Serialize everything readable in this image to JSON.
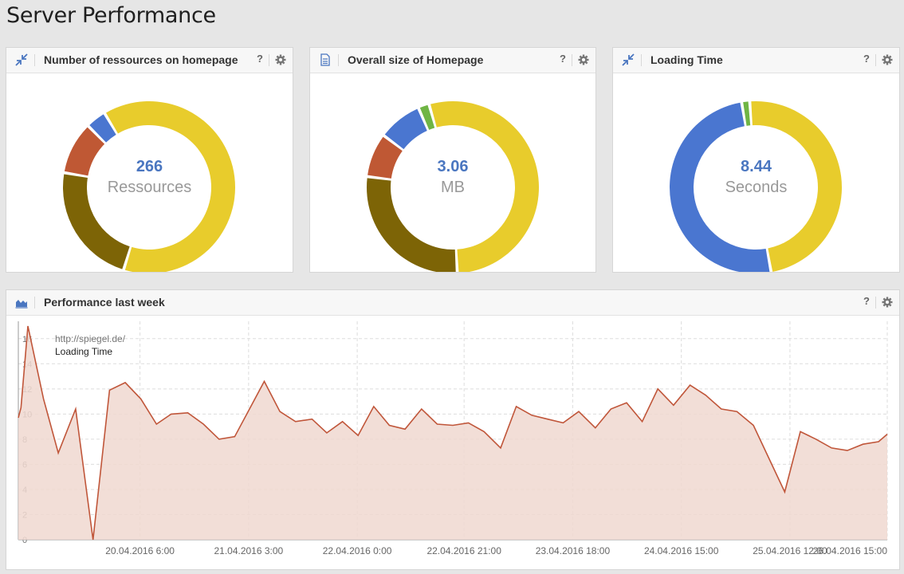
{
  "page": {
    "title": "Server Performance"
  },
  "colors": {
    "yellow": "#e8cc2c",
    "olive": "#7d6406",
    "rust": "#bf5834",
    "blue": "#4a76d0",
    "green": "#6fb544",
    "line": "#c0563a",
    "fill": "#f0d8d0"
  },
  "panels": {
    "resources": {
      "title": "Number of ressources on homepage",
      "icon": "compress-icon",
      "help": "?",
      "value": "266",
      "unit": "Ressources"
    },
    "size": {
      "title": "Overall size of Homepage",
      "icon": "document-icon",
      "help": "?",
      "value": "3.06",
      "unit": "MB"
    },
    "loading": {
      "title": "Loading Time",
      "icon": "compress-icon",
      "help": "?",
      "value": "8.44",
      "unit": "Seconds"
    },
    "performance": {
      "title": "Performance last week",
      "icon": "area-chart-icon",
      "help": "?"
    }
  },
  "chart_data": [
    {
      "type": "pie",
      "title": "Number of ressources on homepage",
      "center_value": "266",
      "center_unit": "Ressources",
      "slices": [
        {
          "name": "yellow",
          "value": 58,
          "color": "#e8cc2c"
        },
        {
          "name": "olive",
          "value": 21,
          "color": "#7d6406"
        },
        {
          "name": "rust",
          "value": 9,
          "color": "#bf5834"
        },
        {
          "name": "blue",
          "value": 3.5,
          "color": "#4a76d0"
        }
      ],
      "start_angle_deg": 239
    },
    {
      "type": "pie",
      "title": "Overall size of Homepage",
      "center_value": "3.06",
      "center_unit": "MB",
      "slices": [
        {
          "name": "yellow",
          "value": 52,
          "color": "#e8cc2c"
        },
        {
          "name": "olive",
          "value": 27,
          "color": "#7d6406"
        },
        {
          "name": "rust",
          "value": 8,
          "color": "#bf5834"
        },
        {
          "name": "blue",
          "value": 8,
          "color": "#4a76d0"
        },
        {
          "name": "green",
          "value": 2,
          "color": "#6fb544"
        }
      ],
      "start_angle_deg": 254
    },
    {
      "type": "pie",
      "title": "Loading Time",
      "center_value": "8.44",
      "center_unit": "Seconds",
      "slices": [
        {
          "name": "yellow",
          "value": 48,
          "color": "#e8cc2c"
        },
        {
          "name": "blue",
          "value": 50,
          "color": "#4a76d0"
        },
        {
          "name": "green",
          "value": 1.5,
          "color": "#6fb544"
        }
      ],
      "start_angle_deg": 266
    },
    {
      "type": "area",
      "title": "Performance last week",
      "series_label": "http://spiegel.de/",
      "legend": "Loading Time",
      "ylim": [
        0,
        17
      ],
      "yticks": [
        0,
        2,
        4,
        6,
        8,
        10,
        12,
        14,
        16
      ],
      "xlabels": [
        "20.04.2016 6:00",
        "21.04.2016 3:00",
        "22.04.2016 0:00",
        "22.04.2016 21:00",
        "23.04.2016 18:00",
        "24.04.2016 15:00",
        "25.04.2016 12:00",
        "26.04.2016 15:00"
      ],
      "values": [
        9.7,
        10.5,
        17.0,
        11.2,
        6.9,
        10.4,
        0.0,
        11.9,
        12.5,
        11.2,
        9.2,
        10.0,
        10.1,
        9.2,
        8.0,
        8.2,
        12.6,
        10.2,
        9.4,
        9.6,
        8.5,
        9.4,
        8.3,
        10.6,
        9.1,
        8.8,
        10.4,
        9.2,
        9.1,
        9.3,
        8.6,
        7.3,
        10.6,
        9.9,
        9.6,
        9.3,
        10.2,
        8.9,
        10.4,
        10.9,
        9.4,
        12.0,
        10.7,
        12.3,
        11.5,
        10.4,
        10.2,
        9.1,
        3.8,
        8.6,
        8.0,
        7.3,
        7.1,
        7.6,
        7.8,
        8.4
      ],
      "x_index": [
        0,
        0.3,
        1.1,
        2.9,
        4.6,
        6.6,
        8.6,
        10.5,
        12.3,
        14.1,
        15.9,
        17.6,
        19.5,
        21.3,
        23.1,
        24.9,
        28.3,
        30.1,
        31.9,
        33.8,
        35.5,
        37.3,
        39.1,
        40.9,
        42.7,
        44.5,
        46.4,
        48.2,
        50.0,
        51.8,
        53.6,
        55.5,
        57.3,
        59.1,
        60.9,
        62.7,
        64.5,
        66.4,
        68.2,
        70.0,
        71.8,
        73.6,
        75.4,
        77.3,
        79.1,
        80.9,
        82.7,
        84.6,
        88.2,
        90.0,
        91.8,
        93.6,
        95.4,
        97.2,
        99.0,
        100.0
      ]
    }
  ]
}
